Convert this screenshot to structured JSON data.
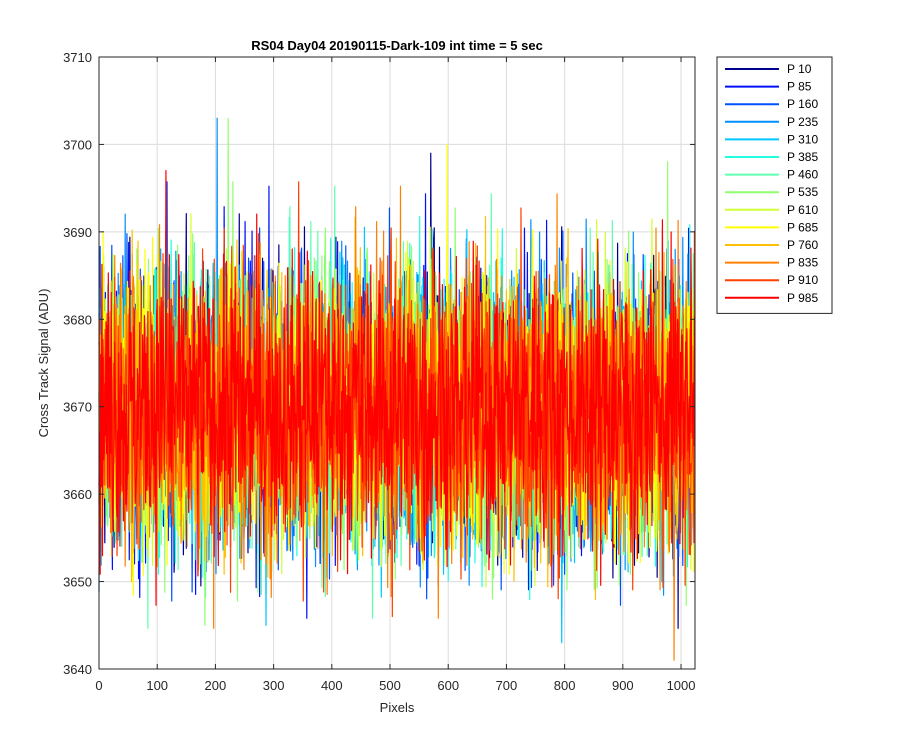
{
  "chart_data": {
    "type": "line",
    "title": "RS04 Day04 20190115-Dark-109 int time = 5 sec",
    "xlabel": "Pixels",
    "ylabel": "Cross Track Signal (ADU)",
    "xlim": [
      0,
      1024
    ],
    "ylim": [
      3640,
      3710
    ],
    "xticks": [
      0,
      100,
      200,
      300,
      400,
      500,
      600,
      700,
      800,
      900,
      1000
    ],
    "yticks": [
      3640,
      3650,
      3660,
      3670,
      3680,
      3690,
      3700,
      3710
    ],
    "grid": true,
    "legend_position": "outside-top-right",
    "signal_summary": {
      "mean": 3670,
      "typical_min": 3655,
      "typical_max": 3687,
      "num_points": 1024
    },
    "series": [
      {
        "name": "P 10",
        "color": "#00008f"
      },
      {
        "name": "P 85",
        "color": "#0010ff"
      },
      {
        "name": "P 160",
        "color": "#0050ff"
      },
      {
        "name": "P 235",
        "color": "#0090ff"
      },
      {
        "name": "P 310",
        "color": "#00c8ff"
      },
      {
        "name": "P 385",
        "color": "#20ffe0"
      },
      {
        "name": "P 460",
        "color": "#60ffb0"
      },
      {
        "name": "P 535",
        "color": "#90ff70"
      },
      {
        "name": "P 610",
        "color": "#d0ff30"
      },
      {
        "name": "P 685",
        "color": "#ffff00"
      },
      {
        "name": "P 760",
        "color": "#ffc000"
      },
      {
        "name": "P 835",
        "color": "#ff8000"
      },
      {
        "name": "P 910",
        "color": "#ff4000"
      },
      {
        "name": "P 985",
        "color": "#ff0000"
      }
    ],
    "notable_peaks": [
      {
        "series": "P 235",
        "x": 203,
        "y": 3703
      },
      {
        "series": "P 535",
        "x": 222,
        "y": 3703
      },
      {
        "series": "P 985",
        "x": 115,
        "y": 3697
      },
      {
        "series": "P 685",
        "x": 598,
        "y": 3700
      },
      {
        "series": "P 10",
        "x": 570,
        "y": 3699
      },
      {
        "series": "P 535",
        "x": 977,
        "y": 3698
      }
    ],
    "notable_troughs": [
      {
        "series": "P 835",
        "x": 988,
        "y": 3641
      },
      {
        "series": "P 310",
        "x": 795,
        "y": 3643
      },
      {
        "series": "P 310",
        "x": 287,
        "y": 3645
      },
      {
        "series": "P 910",
        "x": 504,
        "y": 3646
      },
      {
        "series": "P 535",
        "x": 182,
        "y": 3645
      }
    ]
  }
}
